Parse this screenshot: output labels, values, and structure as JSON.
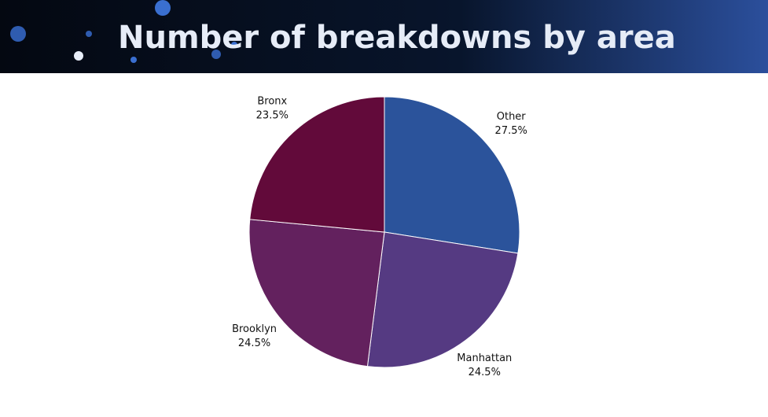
{
  "chart_data": {
    "type": "pie",
    "title": "Number of breakdowns by area",
    "categories": [
      "Other",
      "Manhattan",
      "Brooklyn",
      "Bronx"
    ],
    "values": [
      27.5,
      24.5,
      24.5,
      23.5
    ],
    "value_labels": [
      "27.5%",
      "24.5%",
      "24.5%",
      "23.5%"
    ],
    "colors": [
      "#2b539b",
      "#553a82",
      "#63215e",
      "#620a3a"
    ]
  }
}
